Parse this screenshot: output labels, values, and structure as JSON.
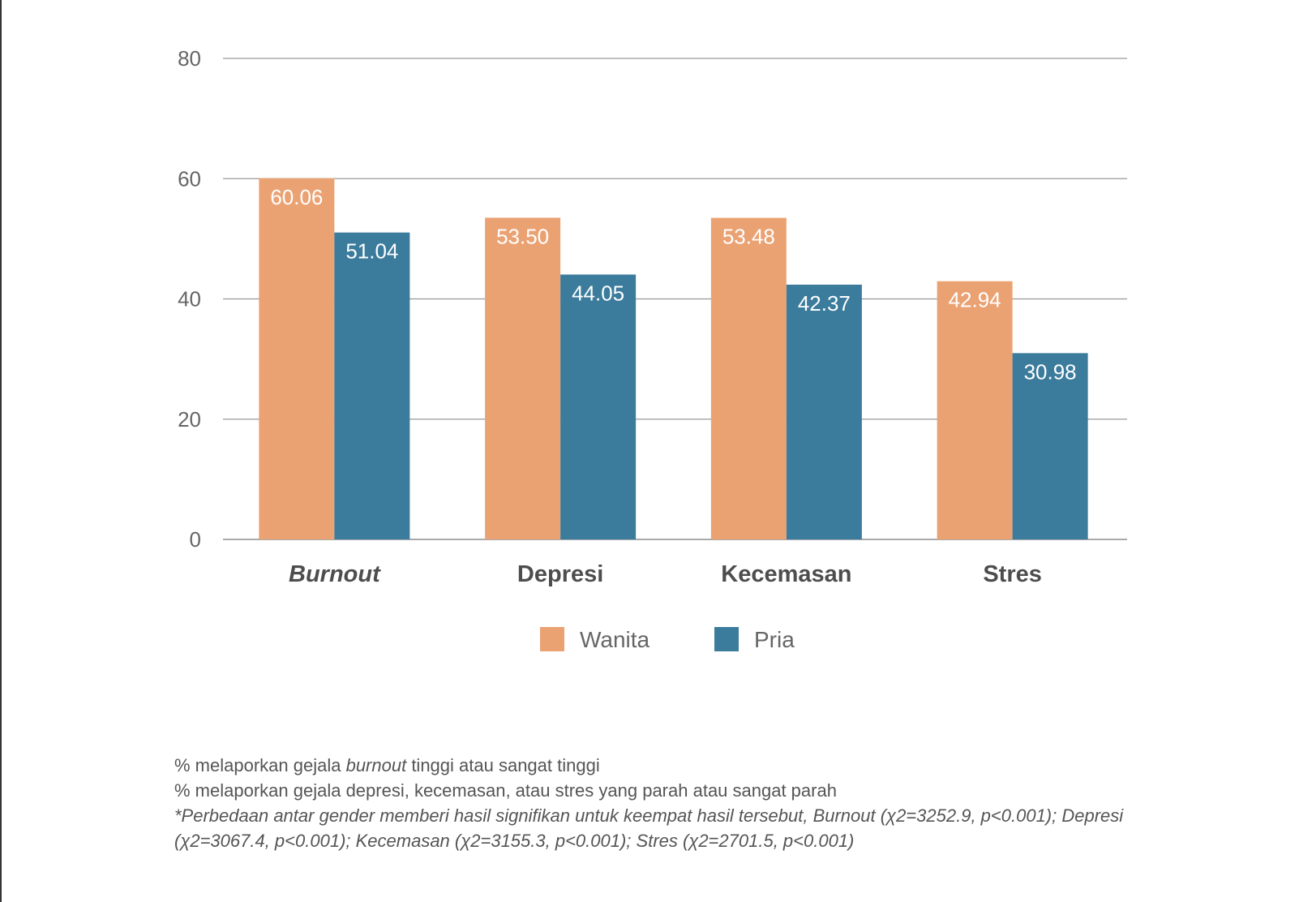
{
  "chart_data": {
    "type": "bar",
    "categories": [
      "Burnout",
      "Depresi",
      "Kecemasan",
      "Stres"
    ],
    "category_italic": [
      true,
      false,
      false,
      false
    ],
    "series": [
      {
        "name": "Wanita",
        "color": "#eba273",
        "values": [
          60.06,
          53.5,
          53.48,
          42.94
        ],
        "labels": [
          "60.06",
          "53.50",
          "53.48",
          "42.94"
        ]
      },
      {
        "name": "Pria",
        "color": "#3b7b9c",
        "values": [
          51.04,
          44.05,
          42.37,
          30.98
        ],
        "labels": [
          "51.04",
          "44.05",
          "42.37",
          "30.98"
        ]
      }
    ],
    "ylim": [
      0,
      80
    ],
    "yticks": [
      0,
      20,
      40,
      60,
      80
    ],
    "grid": true,
    "legend_position": "bottom-center",
    "xlabel": "",
    "ylabel": "",
    "title": ""
  },
  "notes": {
    "line1_pre": "% melaporkan gejala ",
    "line1_em": "burnout",
    "line1_post": " tinggi atau sangat tinggi",
    "line2": "% melaporkan gejala depresi, kecemasan, atau stres yang parah atau sangat parah",
    "line3": "*Perbedaan antar gender memberi hasil signifikan untuk keempat hasil tersebut, Burnout (χ2=3252.9, p<0.001); Depresi (χ2=3067.4, p<0.001); Kecemasan (χ2=3155.3, p<0.001); Stres (χ2=2701.5, p<0.001)"
  }
}
